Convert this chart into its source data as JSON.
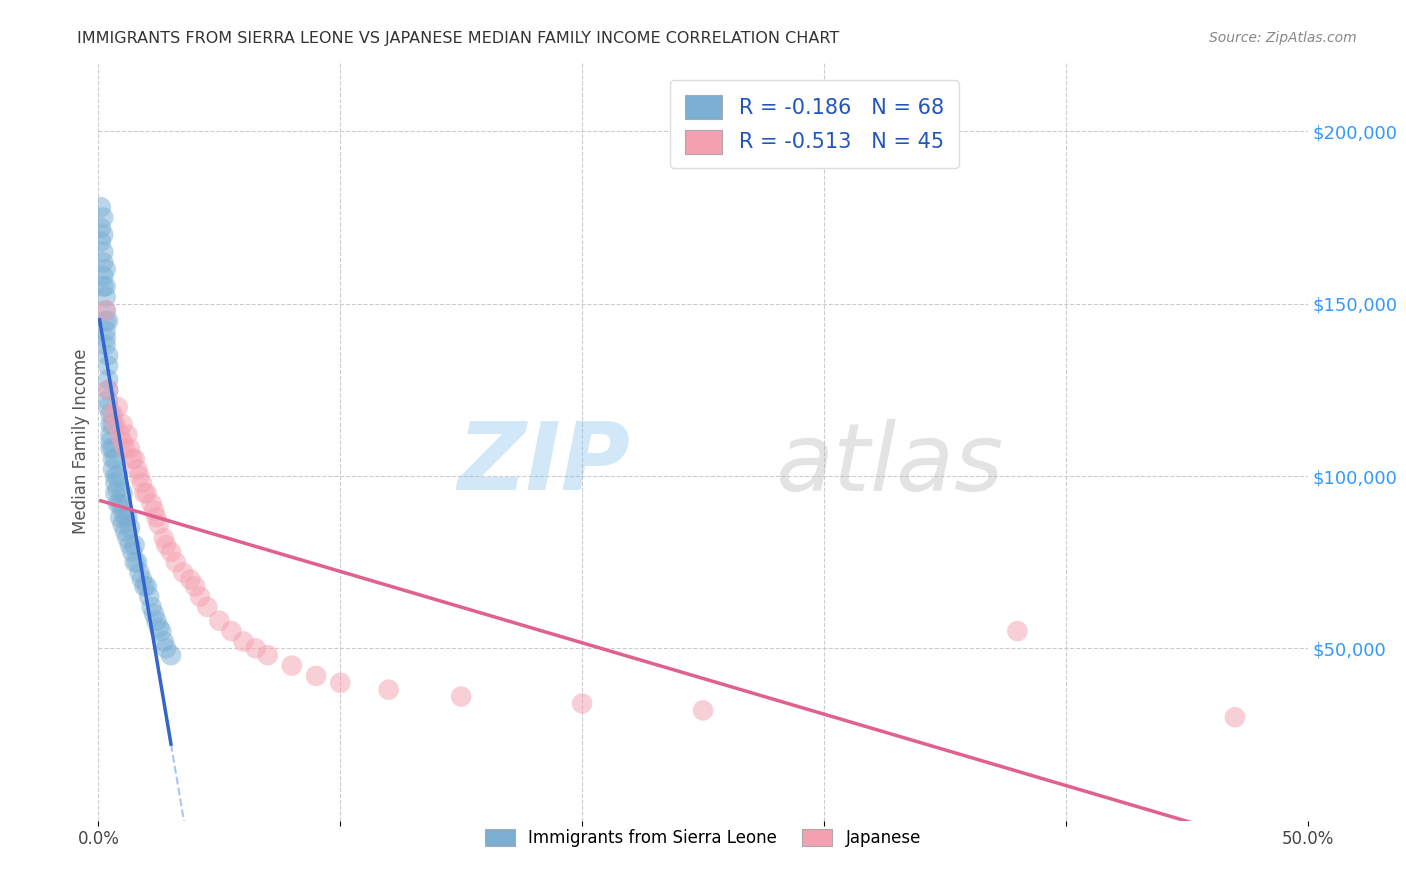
{
  "title": "IMMIGRANTS FROM SIERRA LEONE VS JAPANESE MEDIAN FAMILY INCOME CORRELATION CHART",
  "source": "Source: ZipAtlas.com",
  "ylabel": "Median Family Income",
  "xlim": [
    0,
    0.5
  ],
  "ylim": [
    0,
    220000
  ],
  "xtick_positions": [
    0.0,
    0.1,
    0.2,
    0.3,
    0.4,
    0.5
  ],
  "xtick_labels": [
    "0.0%",
    "",
    "",
    "",
    "",
    "50.0%"
  ],
  "yticks_right": [
    200000,
    150000,
    100000,
    50000
  ],
  "ytick_labels_right": [
    "$200,000",
    "$150,000",
    "$100,000",
    "$50,000"
  ],
  "watermark_zip": "ZIP",
  "watermark_atlas": "atlas",
  "blue_color": "#7bafd4",
  "pink_color": "#f4a0b0",
  "blue_line_color": "#3366cc",
  "pink_line_color": "#e06090",
  "dashed_line_color": "#a8c8f0",
  "background_color": "#ffffff",
  "grid_color": "#cccccc",
  "right_label_color": "#3399ff",
  "sierra_leone_x": [
    0.001,
    0.001,
    0.001,
    0.002,
    0.002,
    0.002,
    0.002,
    0.002,
    0.002,
    0.003,
    0.003,
    0.003,
    0.003,
    0.003,
    0.003,
    0.003,
    0.003,
    0.004,
    0.004,
    0.004,
    0.004,
    0.004,
    0.004,
    0.004,
    0.005,
    0.005,
    0.005,
    0.005,
    0.005,
    0.006,
    0.006,
    0.006,
    0.006,
    0.007,
    0.007,
    0.007,
    0.007,
    0.008,
    0.008,
    0.008,
    0.009,
    0.009,
    0.01,
    0.01,
    0.01,
    0.011,
    0.011,
    0.012,
    0.012,
    0.013,
    0.013,
    0.014,
    0.015,
    0.015,
    0.016,
    0.017,
    0.018,
    0.019,
    0.02,
    0.021,
    0.022,
    0.023,
    0.024,
    0.025,
    0.026,
    0.027,
    0.028,
    0.03
  ],
  "sierra_leone_y": [
    178000,
    172000,
    168000,
    175000,
    170000,
    165000,
    162000,
    158000,
    155000,
    160000,
    155000,
    152000,
    148000,
    145000,
    142000,
    140000,
    138000,
    145000,
    135000,
    132000,
    128000,
    125000,
    122000,
    120000,
    118000,
    115000,
    112000,
    110000,
    108000,
    115000,
    108000,
    105000,
    102000,
    105000,
    100000,
    98000,
    95000,
    100000,
    96000,
    92000,
    92000,
    88000,
    95000,
    90000,
    86000,
    88000,
    84000,
    88000,
    82000,
    85000,
    80000,
    78000,
    80000,
    75000,
    75000,
    72000,
    70000,
    68000,
    68000,
    65000,
    62000,
    60000,
    58000,
    56000,
    55000,
    52000,
    50000,
    48000
  ],
  "japanese_x": [
    0.003,
    0.004,
    0.006,
    0.007,
    0.008,
    0.009,
    0.01,
    0.01,
    0.011,
    0.012,
    0.013,
    0.014,
    0.015,
    0.016,
    0.017,
    0.018,
    0.019,
    0.02,
    0.022,
    0.023,
    0.024,
    0.025,
    0.027,
    0.028,
    0.03,
    0.032,
    0.035,
    0.038,
    0.04,
    0.042,
    0.045,
    0.05,
    0.055,
    0.06,
    0.065,
    0.07,
    0.08,
    0.09,
    0.1,
    0.12,
    0.15,
    0.2,
    0.25,
    0.38,
    0.47
  ],
  "japanese_y": [
    148000,
    125000,
    118000,
    115000,
    120000,
    112000,
    115000,
    110000,
    108000,
    112000,
    108000,
    105000,
    105000,
    102000,
    100000,
    98000,
    95000,
    95000,
    92000,
    90000,
    88000,
    86000,
    82000,
    80000,
    78000,
    75000,
    72000,
    70000,
    68000,
    65000,
    62000,
    58000,
    55000,
    52000,
    50000,
    48000,
    45000,
    42000,
    40000,
    38000,
    36000,
    34000,
    32000,
    55000,
    30000
  ]
}
